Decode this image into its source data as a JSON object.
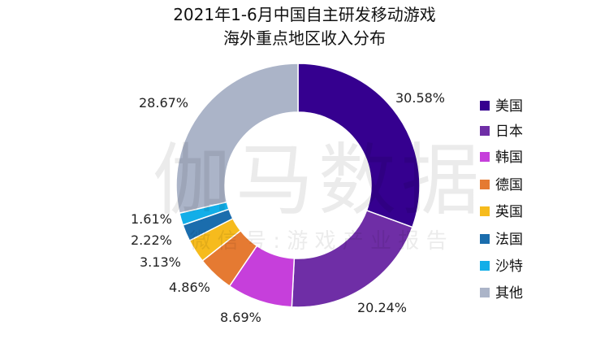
{
  "chart_data": {
    "type": "pie",
    "title": "2021年1-6月中国自主研发移动游戏",
    "subtitle": "海外重点地区收入分布",
    "donut": true,
    "legend_position": "right",
    "categories": [
      "美国",
      "日本",
      "韩国",
      "德国",
      "英国",
      "法国",
      "沙特",
      "其他"
    ],
    "values": [
      30.58,
      20.24,
      8.69,
      4.86,
      3.13,
      2.22,
      1.61,
      28.67
    ],
    "labels": [
      "30.58%",
      "20.24%",
      "8.69%",
      "4.86%",
      "3.13%",
      "2.22%",
      "1.61%",
      "28.67%"
    ],
    "colors": [
      "#35008f",
      "#6f2ea6",
      "#c63fdb",
      "#e57a32",
      "#f6bb1d",
      "#1b6dad",
      "#12aee8",
      "#abb4c8"
    ]
  },
  "watermark": {
    "main": "伽马数据",
    "sub": "微 信 号 : 游 戏 产 业 报 告"
  }
}
